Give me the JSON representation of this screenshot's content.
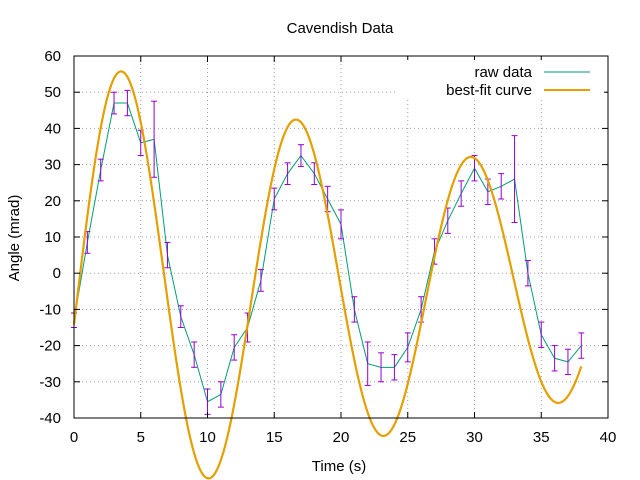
{
  "chart_data": {
    "type": "line",
    "title": "Cavendish Data",
    "xlabel": "Time (s)",
    "ylabel": "Angle (mrad)",
    "xlim": [
      0,
      40
    ],
    "ylim": [
      -40,
      60
    ],
    "xticks": [
      0,
      5,
      10,
      15,
      20,
      25,
      30,
      35,
      40
    ],
    "yticks": [
      -40,
      -30,
      -20,
      -10,
      0,
      10,
      20,
      30,
      40,
      50,
      60
    ],
    "grid": true,
    "legend_position": "top-right",
    "series": [
      {
        "name": "raw data",
        "color": "#009e73",
        "style": "line-with-errorbars",
        "errorbar_color": "#9400d3",
        "points": [
          {
            "x": 0.0,
            "y": -13.0,
            "err": 2.0
          },
          {
            "x": 1.0,
            "y": 8.5,
            "err": 3.0
          },
          {
            "x": 2.0,
            "y": 28.5,
            "err": 3.0
          },
          {
            "x": 3.0,
            "y": 47.0,
            "err": 3.0
          },
          {
            "x": 4.0,
            "y": 47.0,
            "err": 3.5
          },
          {
            "x": 5.0,
            "y": 36.0,
            "err": 3.5
          },
          {
            "x": 6.0,
            "y": 37.0,
            "err": 10.5
          },
          {
            "x": 7.0,
            "y": 5.0,
            "err": 3.5
          },
          {
            "x": 8.0,
            "y": -12.0,
            "err": 3.0
          },
          {
            "x": 9.0,
            "y": -22.5,
            "err": 3.5
          },
          {
            "x": 10.0,
            "y": -35.5,
            "err": 3.5
          },
          {
            "x": 11.0,
            "y": -33.5,
            "err": 3.5
          },
          {
            "x": 12.0,
            "y": -20.5,
            "err": 3.5
          },
          {
            "x": 13.0,
            "y": -15.0,
            "err": 4.0
          },
          {
            "x": 14.0,
            "y": -2.0,
            "err": 3.0
          },
          {
            "x": 15.0,
            "y": 20.5,
            "err": 3.0
          },
          {
            "x": 16.0,
            "y": 27.5,
            "err": 3.0
          },
          {
            "x": 17.0,
            "y": 32.5,
            "err": 3.0
          },
          {
            "x": 18.0,
            "y": 27.5,
            "err": 3.0
          },
          {
            "x": 19.0,
            "y": 20.5,
            "err": 3.5
          },
          {
            "x": 20.0,
            "y": 13.5,
            "err": 4.0
          },
          {
            "x": 21.0,
            "y": -10.0,
            "err": 3.5
          },
          {
            "x": 22.0,
            "y": -25.0,
            "err": 6.0
          },
          {
            "x": 23.0,
            "y": -26.0,
            "err": 4.0
          },
          {
            "x": 24.0,
            "y": -26.0,
            "err": 3.5
          },
          {
            "x": 25.0,
            "y": -20.5,
            "err": 4.0
          },
          {
            "x": 26.0,
            "y": -10.0,
            "err": 3.5
          },
          {
            "x": 27.0,
            "y": 6.0,
            "err": 3.5
          },
          {
            "x": 28.0,
            "y": 14.5,
            "err": 3.5
          },
          {
            "x": 29.0,
            "y": 22.0,
            "err": 3.5
          },
          {
            "x": 30.0,
            "y": 29.0,
            "err": 3.5
          },
          {
            "x": 31.0,
            "y": 22.5,
            "err": 3.5
          },
          {
            "x": 32.0,
            "y": 24.0,
            "err": 3.5
          },
          {
            "x": 33.0,
            "y": 26.0,
            "err": 12.0
          },
          {
            "x": 34.0,
            "y": 0.0,
            "err": 3.5
          },
          {
            "x": 35.0,
            "y": -17.0,
            "err": 3.5
          },
          {
            "x": 36.0,
            "y": -23.5,
            "err": 3.5
          },
          {
            "x": 37.0,
            "y": -24.5,
            "err": 3.5
          },
          {
            "x": 38.0,
            "y": -20.0,
            "err": 3.5
          }
        ]
      },
      {
        "name": "best-fit curve",
        "color": "#e69f00",
        "style": "line",
        "model": "damped sinusoid A*exp(-t/tau)*sin(2*pi*t/T + phi) + c",
        "params": {
          "A": 64,
          "tau": 52,
          "T": 13.1,
          "phi": -0.16,
          "c": -4
        }
      }
    ]
  }
}
